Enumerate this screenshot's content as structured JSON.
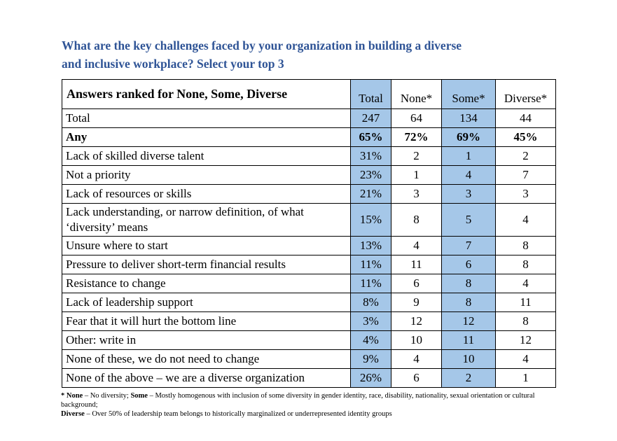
{
  "title": {
    "line1": "What are the key challenges faced by your organization in building a diverse",
    "line2": "and inclusive workplace? Select your top 3"
  },
  "colors": {
    "title_blue": "#2F5496",
    "highlight_blue": "#A5C7E8",
    "border": "#000000"
  },
  "table": {
    "answers_label": "Answers ranked for None, Some, Diverse",
    "columns": [
      "Total",
      "None*",
      "Some*",
      "Diverse*"
    ],
    "highlighted_columns": [
      "Total",
      "Some*"
    ],
    "rows": [
      {
        "label": "Total",
        "bold": false,
        "values": [
          "247",
          "64",
          "134",
          "44"
        ]
      },
      {
        "label": "Any",
        "bold": true,
        "values": [
          "65%",
          "72%",
          "69%",
          "45%"
        ]
      },
      {
        "label": "Lack of skilled diverse talent",
        "bold": false,
        "values": [
          "31%",
          "2",
          "1",
          "2"
        ]
      },
      {
        "label": "Not a priority",
        "bold": false,
        "values": [
          "23%",
          "1",
          "4",
          "7"
        ]
      },
      {
        "label": "Lack of resources or skills",
        "bold": false,
        "values": [
          "21%",
          "3",
          "3",
          "3"
        ]
      },
      {
        "label": "Lack understanding, or narrow definition, of what ‘diversity’ means",
        "bold": false,
        "values": [
          "15%",
          "8",
          "5",
          "4"
        ]
      },
      {
        "label": "Unsure where to start",
        "bold": false,
        "values": [
          "13%",
          "4",
          "7",
          "8"
        ]
      },
      {
        "label": "Pressure to deliver short-term financial results",
        "bold": false,
        "values": [
          "11%",
          "11",
          "6",
          "8"
        ]
      },
      {
        "label": "Resistance to change",
        "bold": false,
        "values": [
          "11%",
          "6",
          "8",
          "4"
        ]
      },
      {
        "label": "Lack of leadership support",
        "bold": false,
        "values": [
          "8%",
          "9",
          "8",
          "11"
        ]
      },
      {
        "label": "Fear that it will hurt the bottom line",
        "bold": false,
        "values": [
          "3%",
          "12",
          "12",
          "8"
        ]
      },
      {
        "label": "Other: write in",
        "bold": false,
        "values": [
          "4%",
          "10",
          "11",
          "12"
        ]
      },
      {
        "label": "None of these, we do not need to change",
        "bold": false,
        "values": [
          "9%",
          "4",
          "10",
          "4"
        ]
      },
      {
        "label": "None of the above – we are a diverse organization",
        "bold": false,
        "values": [
          "26%",
          "6",
          "2",
          "1"
        ]
      }
    ]
  },
  "footnote": {
    "line1": [
      {
        "text": "* None",
        "bold": true
      },
      {
        "text": " – No diversity; ",
        "bold": false
      },
      {
        "text": "Some",
        "bold": true
      },
      {
        "text": " – Mostly homogenous with inclusion of some diversity in gender identity, race, disability, nationality, sexual orientation or cultural background;",
        "bold": false
      }
    ],
    "line2": [
      {
        "text": "Diverse",
        "bold": true
      },
      {
        "text": " – Over 50% of leadership team belongs to historically marginalized or underrepresented identity groups",
        "bold": false
      }
    ]
  }
}
